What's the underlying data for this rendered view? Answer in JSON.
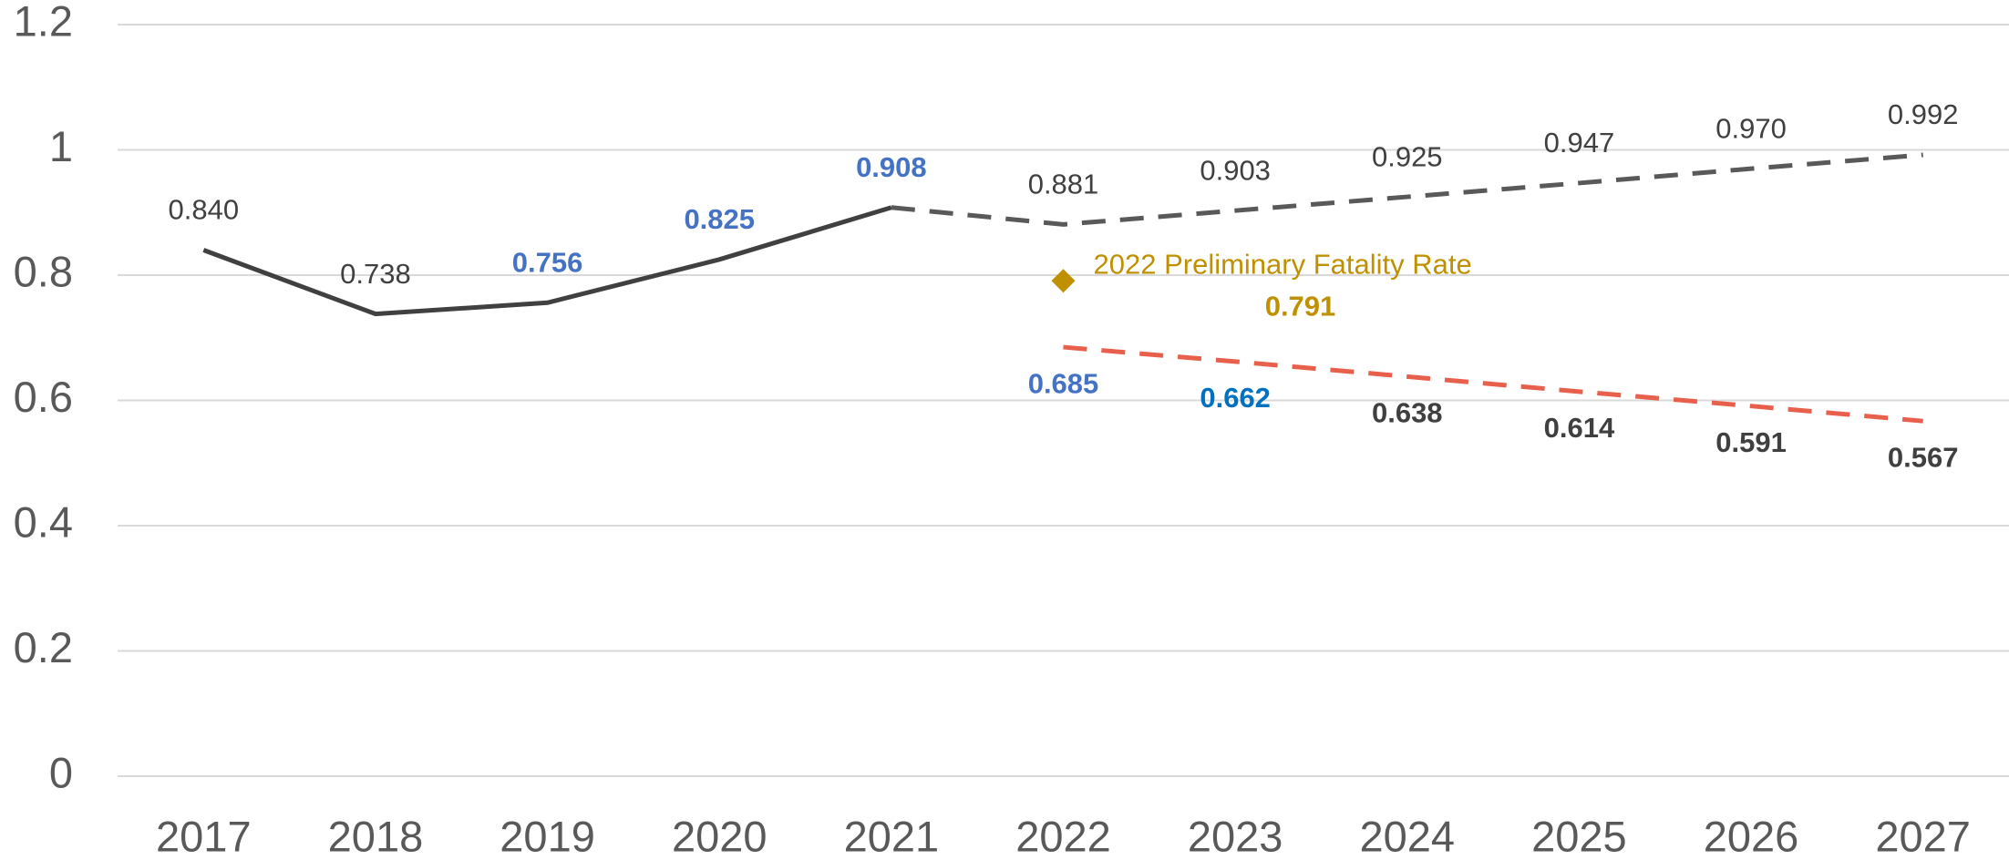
{
  "chart_data": {
    "type": "line",
    "categories": [
      "2017",
      "2018",
      "2019",
      "2020",
      "2021",
      "2022",
      "2023",
      "2024",
      "2025",
      "2026",
      "2027"
    ],
    "ylim": [
      0,
      1.2
    ],
    "yticks": [
      0,
      0.2,
      0.4,
      0.6,
      0.8,
      1,
      1.2
    ],
    "grid": true,
    "series": [
      {
        "color": "#404040",
        "dashed": false,
        "values": [
          0.84,
          0.738,
          0.756,
          0.825,
          0.908,
          null,
          null,
          null,
          null,
          null,
          null
        ],
        "value_labels": [
          "0.840",
          "0.738",
          "0.756",
          "0.825",
          "0.908",
          null,
          null,
          null,
          null,
          null,
          null
        ],
        "label_colors": [
          "#404040",
          "#404040",
          "#4472c4",
          "#4472c4",
          "#4472c4",
          null,
          null,
          null,
          null,
          null,
          null
        ],
        "label_position": "above"
      },
      {
        "color": "#595959",
        "dashed": true,
        "values": [
          null,
          null,
          null,
          null,
          0.908,
          0.881,
          0.903,
          0.925,
          0.947,
          0.97,
          0.992
        ],
        "value_labels": [
          null,
          null,
          null,
          null,
          null,
          "0.881",
          "0.903",
          "0.925",
          "0.947",
          "0.970",
          "0.992"
        ],
        "label_colors": [
          null,
          null,
          null,
          null,
          null,
          "#404040",
          "#404040",
          "#404040",
          "#404040",
          "#404040",
          "#404040"
        ],
        "label_position": "above"
      },
      {
        "color": "#e8604c",
        "dashed": true,
        "values": [
          null,
          null,
          null,
          null,
          null,
          0.685,
          0.662,
          0.638,
          0.614,
          0.591,
          0.567
        ],
        "value_labels": [
          null,
          null,
          null,
          null,
          null,
          "0.685",
          "0.662",
          "0.638",
          "0.614",
          "0.591",
          "0.567"
        ],
        "label_colors": [
          null,
          null,
          null,
          null,
          null,
          "#4472c4",
          "#0070c0",
          "#404040",
          "#404040",
          "#404040",
          "#404040"
        ],
        "label_position": "below"
      }
    ],
    "highlight": {
      "x": "2022",
      "value": 0.791,
      "value_label": "0.791",
      "label": "2022 Preliminary Fatality Rate",
      "color": "#bf9000"
    }
  }
}
